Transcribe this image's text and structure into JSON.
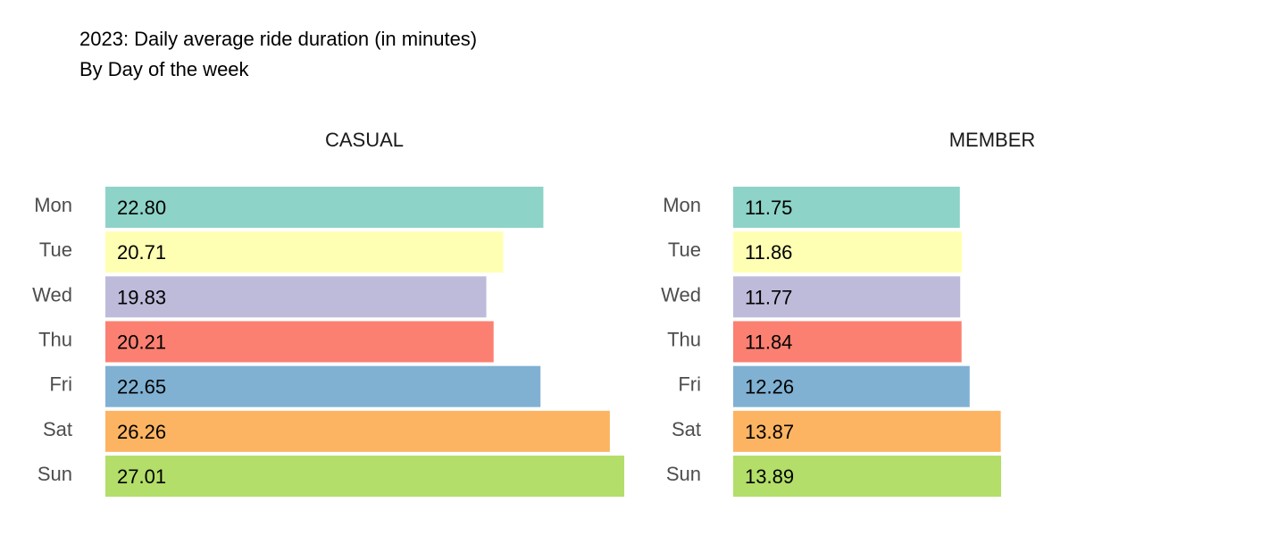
{
  "chart_data": {
    "type": "bar",
    "orientation": "horizontal",
    "title": "2023: Daily average ride duration (in minutes)",
    "subtitle": "By Day of the week",
    "categories": [
      "Mon",
      "Tue",
      "Wed",
      "Thu",
      "Fri",
      "Sat",
      "Sun"
    ],
    "category_colors": [
      "#8dd3c7",
      "#ffffb3",
      "#bebada",
      "#fb8072",
      "#80b1d3",
      "#fdb462",
      "#b3de69"
    ],
    "panels": [
      {
        "name": "CASUAL",
        "values": [
          22.8,
          20.71,
          19.83,
          20.21,
          22.65,
          26.26,
          27.01
        ],
        "labels": [
          "22.80",
          "20.71",
          "19.83",
          "20.21",
          "22.65",
          "26.26",
          "27.01"
        ]
      },
      {
        "name": "MEMBER",
        "values": [
          11.75,
          11.86,
          11.77,
          11.84,
          12.26,
          13.87,
          13.89
        ],
        "labels": [
          "11.75",
          "11.86",
          "11.77",
          "11.84",
          "12.26",
          "13.87",
          "13.89"
        ]
      }
    ],
    "grid": false,
    "legend": "none",
    "xlabel": "",
    "ylabel": ""
  }
}
